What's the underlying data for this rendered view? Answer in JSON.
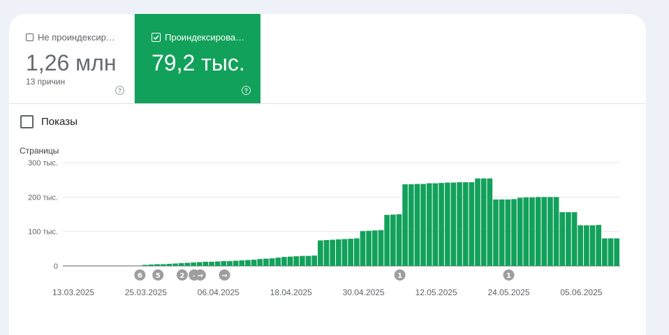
{
  "tiles": {
    "not_indexed": {
      "label": "Не проиндексир…",
      "value": "1,26 млн",
      "sub": "13 причин",
      "help_glyph": "?",
      "checked": false
    },
    "indexed": {
      "label": "Проиндексирова…",
      "value": "79,2 тыс.",
      "help_glyph": "?",
      "checked": true,
      "color": "#12a15b"
    }
  },
  "toggle": {
    "label": "Показы",
    "checked": false
  },
  "colors": {
    "accent": "#12a15b",
    "grid": "#e6e6e6",
    "annotation": "#9e9e9e",
    "background": "#eef2f8"
  },
  "chart_data": {
    "type": "bar",
    "ylabel": "Страницы",
    "ylim": [
      0,
      300000
    ],
    "yticks": [
      {
        "value": 0,
        "label": "0"
      },
      {
        "value": 100000,
        "label": "100 тыс."
      },
      {
        "value": 200000,
        "label": "200 тыс."
      },
      {
        "value": 300000,
        "label": "300 тыс."
      }
    ],
    "x_start": "13.03.2025",
    "x_tick_labels": [
      "13.03.2025",
      "25.03.2025",
      "06.04.2025",
      "18.04.2025",
      "30.04.2025",
      "12.05.2025",
      "24.05.2025",
      "05.06.2025"
    ],
    "values": [
      0,
      0,
      0,
      0,
      0,
      0,
      0,
      0,
      0,
      0,
      0,
      0,
      3000,
      4000,
      5000,
      5000,
      6000,
      7000,
      8000,
      9000,
      10000,
      11000,
      12000,
      12000,
      13000,
      14000,
      14000,
      15000,
      16000,
      17000,
      18000,
      20000,
      21000,
      22000,
      24000,
      26000,
      27000,
      28000,
      29000,
      29000,
      30000,
      74000,
      75000,
      76000,
      77000,
      78000,
      79000,
      80000,
      101000,
      102000,
      103000,
      104000,
      148000,
      149000,
      150000,
      237000,
      237000,
      238000,
      238000,
      240000,
      240000,
      241000,
      242000,
      242000,
      243000,
      243000,
      243000,
      254000,
      254000,
      254000,
      193000,
      193000,
      193000,
      194000,
      198000,
      199000,
      199000,
      200000,
      200000,
      200000,
      200000,
      156000,
      156000,
      156000,
      118000,
      118000,
      118000,
      119000,
      80000,
      80000,
      80000
    ],
    "annotations": [
      {
        "label": "6",
        "date": "24.03.2025"
      },
      {
        "label": "5",
        "date": "27.03.2025"
      },
      {
        "label": "2",
        "date": "31.03.2025"
      },
      {
        "label": "-",
        "date": "02.04.2025"
      },
      {
        "label": "→",
        "date": "03.04.2025"
      },
      {
        "label": "→",
        "date": "07.04.2025"
      },
      {
        "label": "1",
        "date": "06.05.2025"
      },
      {
        "label": "1",
        "date": "24.05.2025"
      }
    ]
  }
}
